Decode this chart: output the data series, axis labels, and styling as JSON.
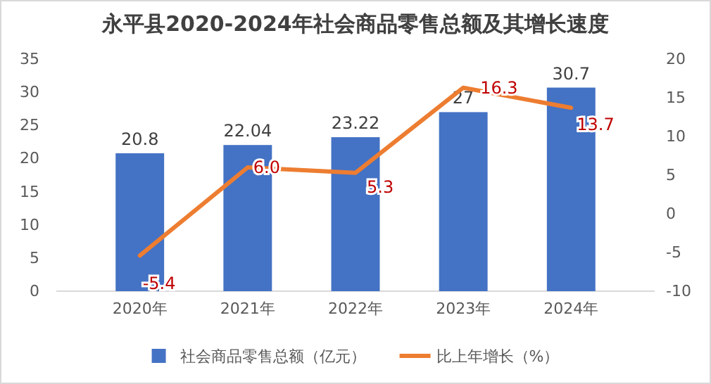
{
  "chart_data": {
    "type": "bar",
    "title": "永平县2020-2024年社会商品零售总额及其增长速度",
    "categories": [
      "2020年",
      "2021年",
      "2022年",
      "2023年",
      "2024年"
    ],
    "series": [
      {
        "name": "社会商品零售总额（亿元）",
        "color": "#4472c4",
        "values": [
          20.8,
          22.04,
          23.22,
          27,
          30.7
        ],
        "value_labels": [
          "20.8",
          "22.04",
          "23.22",
          "27",
          "30.7"
        ]
      },
      {
        "name": "比上年增长（%）",
        "type": "line",
        "axis": "y2",
        "color": "#ed7d31",
        "values": [
          -5.4,
          6.0,
          5.3,
          16.3,
          13.7
        ],
        "value_labels": [
          "-5.4",
          "6.0",
          "5.3",
          "16.3",
          "13.7"
        ]
      }
    ],
    "ylim": [
      0,
      35
    ],
    "yticks": [
      0,
      5,
      10,
      15,
      20,
      25,
      30,
      35
    ],
    "y2lim": [
      -10,
      20
    ],
    "y2ticks": [
      -10,
      -5,
      0,
      5,
      10,
      15,
      20
    ],
    "grid": false,
    "legend": "bottom",
    "marker": "none",
    "line_style": "solid"
  }
}
